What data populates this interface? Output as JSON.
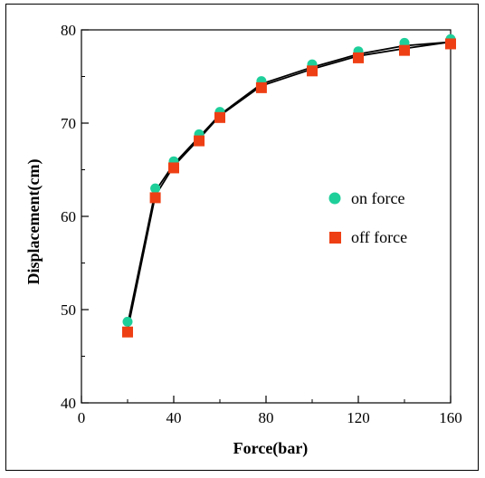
{
  "chart_data": {
    "type": "scatter",
    "xlabel": "Force(bar)",
    "ylabel": "Displacement(cm)",
    "xlim": [
      0,
      160
    ],
    "ylim": [
      40,
      80
    ],
    "xticks": [
      0,
      40,
      80,
      120,
      160
    ],
    "yticks": [
      40,
      50,
      60,
      70,
      80
    ],
    "grid": false,
    "legend_position": "middle-right",
    "series": [
      {
        "name": "on force",
        "marker": "circle",
        "color": "#1ecf9a",
        "x": [
          20,
          32,
          40,
          51,
          60,
          78,
          100,
          120,
          140,
          160
        ],
        "y": [
          48.7,
          63.0,
          65.9,
          68.8,
          71.2,
          74.5,
          76.3,
          77.7,
          78.6,
          79.0
        ]
      },
      {
        "name": "off force",
        "marker": "square",
        "color": "#ee3f14",
        "x": [
          20,
          32,
          40,
          51,
          60,
          78,
          100,
          120,
          140,
          160
        ],
        "y": [
          47.6,
          62.0,
          65.2,
          68.1,
          70.6,
          73.8,
          75.6,
          77.0,
          77.8,
          78.5
        ]
      }
    ],
    "fit_lines": {
      "color": "#000000",
      "note_series": [
        "on force",
        "off force"
      ]
    }
  }
}
